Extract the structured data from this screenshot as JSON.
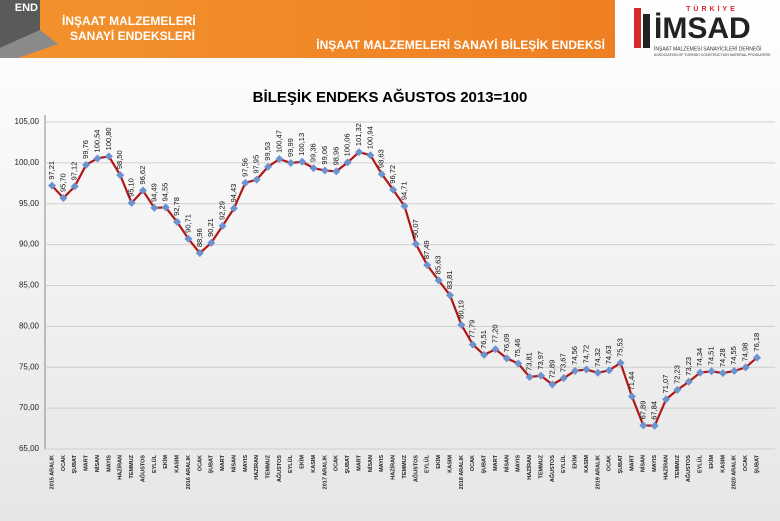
{
  "header": {
    "corner_text": "END",
    "left_title": [
      "İNŞAAT MALZEMELERİ",
      "SANAYİ ENDEKSLERİ"
    ],
    "main_title": "İNŞAAT MALZEMELERİ SANAYİ BİLEŞİK ENDEKSİ",
    "logo": {
      "top": "TÜRKİYE",
      "name": "İMSAD",
      "line1": "İNŞAAT MALZEMESİ SANAYİCİLERİ DERNEĞİ",
      "line2": "ASSOCIATION OF TURKISH CONSTRUCTION MATERIAL PRODUCERS"
    }
  },
  "chart_data": {
    "type": "line",
    "title": "BİLEŞİK ENDEKS AĞUSTOS 2013=100",
    "categories": [
      "2015 ARALIK",
      "OCAK",
      "ŞUBAT",
      "MART",
      "NİSAN",
      "MAYIS",
      "HAZİRAN",
      "TEMMUZ",
      "AĞUSTOS",
      "EYLÜL",
      "EKİM",
      "KASIM",
      "2016 ARALIK",
      "OCAK",
      "ŞUBAT",
      "MART",
      "NİSAN",
      "MAYIS",
      "HAZİRAN",
      "TEMMUZ",
      "AĞUSTOS",
      "EYLÜL",
      "EKİM",
      "KASIM",
      "2017 ARALIK",
      "OCAK",
      "ŞUBAT",
      "MART",
      "NİSAN",
      "MAYIS",
      "HAZİRAN",
      "TEMMUZ",
      "AĞUSTOS",
      "EYLÜL",
      "EKİM",
      "KASIM",
      "2018 ARALIK",
      "OCAK",
      "ŞUBAT",
      "MART",
      "NİSAN",
      "MAYIS",
      "HAZİRAN",
      "TEMMUZ",
      "AĞUSTOS",
      "EYLÜL",
      "EKİM",
      "KASIM",
      "2019 ARALIK",
      "OCAK",
      "ŞUBAT",
      "MART",
      "NİSAN",
      "MAYIS",
      "HAZİRAN",
      "TEMMUZ",
      "AĞUSTOS",
      "EYLÜL",
      "EKİM",
      "KASIM",
      "2020 ARALIK",
      "OCAK",
      "ŞUBAT"
    ],
    "values": [
      97.21,
      95.7,
      97.12,
      99.76,
      100.54,
      100.8,
      98.5,
      95.1,
      96.62,
      94.49,
      94.55,
      92.78,
      90.71,
      88.96,
      90.21,
      92.29,
      94.43,
      97.56,
      97.95,
      99.53,
      100.47,
      99.99,
      100.13,
      99.36,
      99.06,
      98.96,
      100.06,
      101.32,
      100.94,
      98.63,
      96.72,
      94.71,
      90.07,
      87.49,
      85.63,
      83.81,
      80.19,
      77.79,
      76.51,
      77.2,
      76.09,
      75.46,
      73.81,
      73.97,
      72.89,
      73.67,
      74.56,
      74.72,
      74.32,
      74.63,
      75.53,
      71.44,
      67.89,
      67.84,
      71.07,
      72.23,
      73.23,
      74.34,
      74.51,
      74.28,
      74.55,
      74.98,
      76.18
    ],
    "value_labels": [
      "97,21",
      "95,70",
      "97,12",
      "99,76",
      "100,54",
      "100,80",
      "98,50",
      "95,10",
      "96,62",
      "94,49",
      "94,55",
      "92,78",
      "90,71",
      "88,96",
      "90,21",
      "92,29",
      "94,43",
      "97,56",
      "97,95",
      "99,53",
      "100,47",
      "99,99",
      "100,13",
      "99,36",
      "99,06",
      "98,96",
      "100,06",
      "101,32",
      "100,94",
      "98,63",
      "96,72",
      "94,71",
      "90,07",
      "87,49",
      "85,63",
      "83,81",
      "80,19",
      "77,79",
      "76,51",
      "77,20",
      "76,09",
      "75,46",
      "73,81",
      "73,97",
      "72,89",
      "73,67",
      "74,56",
      "74,72",
      "74,32",
      "74,63",
      "75,53",
      "71,44",
      "67,89",
      "67,84",
      "71,07",
      "72,23",
      "73,23",
      "74,34",
      "74,51",
      "74,28",
      "74,55",
      "74,98",
      "76,18"
    ],
    "color": "#b01818",
    "marker_color": "#6a93cf",
    "ylim": [
      65,
      105
    ],
    "yticks": [
      {
        "value": 65,
        "label": "65,00"
      },
      {
        "value": 70,
        "label": "70,00"
      },
      {
        "value": 75,
        "label": "75,00"
      },
      {
        "value": 80,
        "label": "80,00"
      },
      {
        "value": 85,
        "label": "85,00"
      },
      {
        "value": 90,
        "label": "90,00"
      },
      {
        "value": 95,
        "label": "95,00"
      },
      {
        "value": 100,
        "label": "100,00"
      },
      {
        "value": 105,
        "label": "105,00"
      }
    ],
    "grid": true
  }
}
